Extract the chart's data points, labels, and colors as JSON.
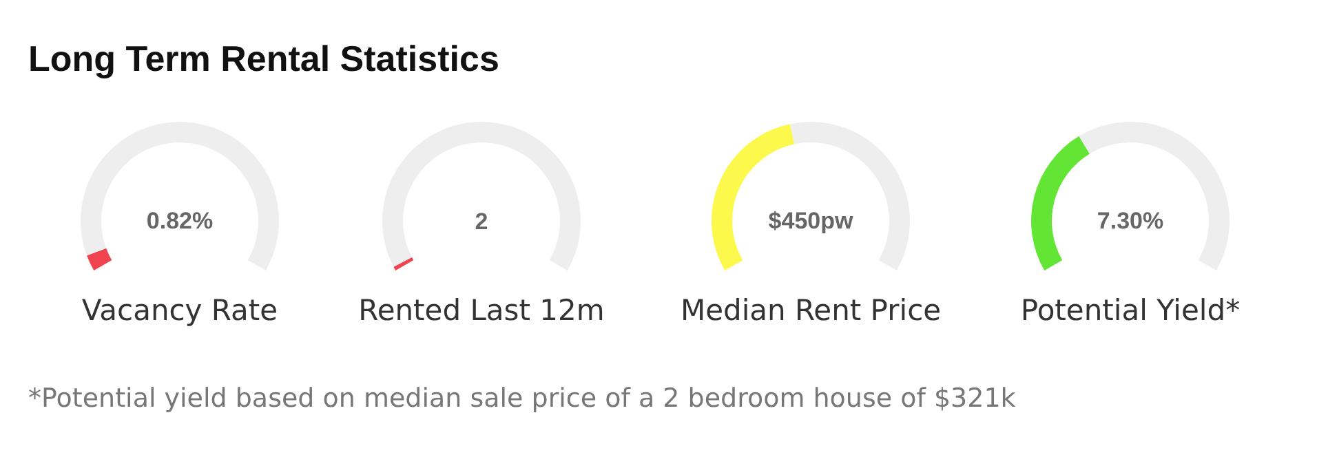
{
  "chart_data": [
    {
      "type": "other",
      "title": "Long Term Rental Statistics",
      "annotations": [
        "*Potential yield based on median sale price of a 2 bedroom house of $321k"
      ]
    },
    {
      "type": "donut",
      "title": "Vacancy Rate",
      "categories": [
        null,
        null
      ],
      "values": [
        4,
        96
      ],
      "colors": [
        "#f0434f",
        "#eeeeee"
      ],
      "annotations": [
        "0.82%"
      ]
    },
    {
      "type": "donut",
      "title": "Rented Last 12m",
      "categories": [
        null,
        null
      ],
      "values": [
        1,
        99
      ],
      "colors": [
        "#f0434f",
        "#eeeeee"
      ],
      "annotations": [
        "2"
      ]
    },
    {
      "type": "donut",
      "title": "Median Rent Price",
      "categories": [
        null,
        null
      ],
      "values": [
        45,
        55
      ],
      "colors": [
        "#fdf94c",
        "#eeeeee"
      ],
      "annotations": [
        "$450pw"
      ]
    },
    {
      "type": "donut",
      "title": "Potential Yield*",
      "categories": [
        null,
        null
      ],
      "values": [
        37,
        63
      ],
      "colors": [
        "#62e535",
        "#eeeeee"
      ],
      "annotations": [
        "7.30%"
      ]
    }
  ]
}
